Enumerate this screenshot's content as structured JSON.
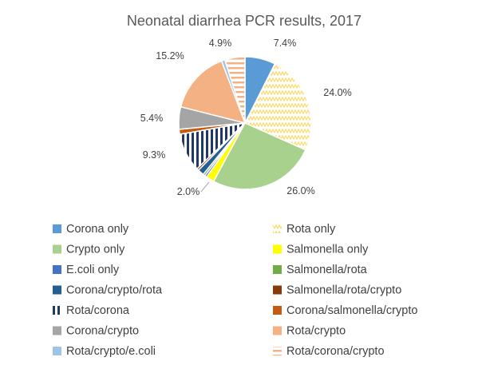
{
  "chart_data": {
    "type": "pie",
    "title": "Neonatal diarrhea PCR results, 2017",
    "legend_position": "bottom",
    "slices": [
      {
        "label": "Corona only",
        "value": 7.4,
        "display": "7.4%",
        "color": "#5b9bd5",
        "pattern": "solid",
        "show_label": true
      },
      {
        "label": "Rota only",
        "value": 24.0,
        "display": "24.0%",
        "color": "#ffe699",
        "pattern": "zigzag",
        "show_label": true
      },
      {
        "label": "Crypto only",
        "value": 26.0,
        "display": "26.0%",
        "color": "#a9d18e",
        "pattern": "solid",
        "show_label": true
      },
      {
        "label": "Salmonella only",
        "value": 2.0,
        "display": "2.0%",
        "color": "#ffff00",
        "pattern": "solid",
        "show_label": true
      },
      {
        "label": "E.coli only",
        "value": 0.5,
        "display": "",
        "color": "#4472c4",
        "pattern": "solid",
        "show_label": false
      },
      {
        "label": "Salmonella/rota",
        "value": 0.5,
        "display": "",
        "color": "#70ad47",
        "pattern": "solid",
        "show_label": false
      },
      {
        "label": "Corona/crypto/rota",
        "value": 1.5,
        "display": "",
        "color": "#255e91",
        "pattern": "solid",
        "show_label": false
      },
      {
        "label": "Salmonella/rota/crypto",
        "value": 0.5,
        "display": "",
        "color": "#843c0c",
        "pattern": "solid",
        "show_label": false
      },
      {
        "label": "Rota/corona",
        "value": 9.3,
        "display": "9.3%",
        "color": "#1f3864",
        "pattern": "vstripes",
        "show_label": true
      },
      {
        "label": "Corona/salmonella/crypto",
        "value": 1.2,
        "display": "",
        "color": "#c55a11",
        "pattern": "solid",
        "show_label": false
      },
      {
        "label": "Corona/crypto",
        "value": 5.4,
        "display": "5.4%",
        "color": "#a5a5a5",
        "pattern": "solid",
        "show_label": true
      },
      {
        "label": "Rota/crypto",
        "value": 15.2,
        "display": "15.2%",
        "color": "#f4b183",
        "pattern": "solid",
        "show_label": true
      },
      {
        "label": "Rota/crypto/e.coli",
        "value": 0.8,
        "display": "",
        "color": "#9dc3e6",
        "pattern": "solid",
        "show_label": false
      },
      {
        "label": "Rota/corona/crypto",
        "value": 4.9,
        "display": "4.9%",
        "color": "#f4b183",
        "pattern": "hstripes",
        "show_label": true
      }
    ]
  }
}
